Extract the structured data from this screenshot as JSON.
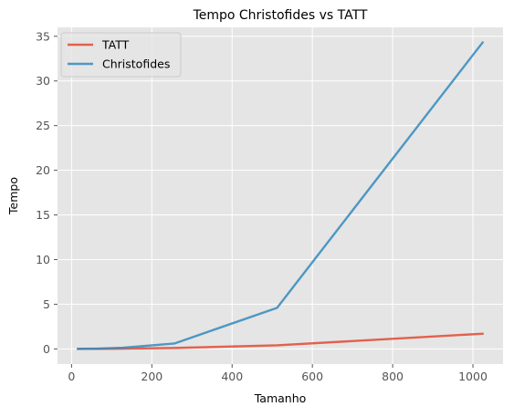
{
  "chart_data": {
    "type": "line",
    "title": "Tempo Christofides vs TATT",
    "xlabel": "Tamanho",
    "ylabel": "Tempo",
    "xlim": [
      -35,
      1075
    ],
    "ylim": [
      -1.7,
      36
    ],
    "xticks": [
      0,
      200,
      400,
      600,
      800,
      1000
    ],
    "yticks": [
      0,
      5,
      10,
      15,
      20,
      25,
      30,
      35
    ],
    "grid": true,
    "legend_position": "top-left",
    "series": [
      {
        "name": "TATT",
        "color": "#E24A33",
        "x": [
          16,
          32,
          64,
          128,
          256,
          512,
          1024
        ],
        "y": [
          0.0,
          0.0,
          0.01,
          0.03,
          0.1,
          0.4,
          1.7
        ]
      },
      {
        "name": "Christofides",
        "color": "#348ABD",
        "x": [
          16,
          32,
          64,
          128,
          256,
          512,
          1024
        ],
        "y": [
          0.0,
          0.01,
          0.03,
          0.13,
          0.6,
          4.6,
          34.3
        ]
      }
    ]
  }
}
